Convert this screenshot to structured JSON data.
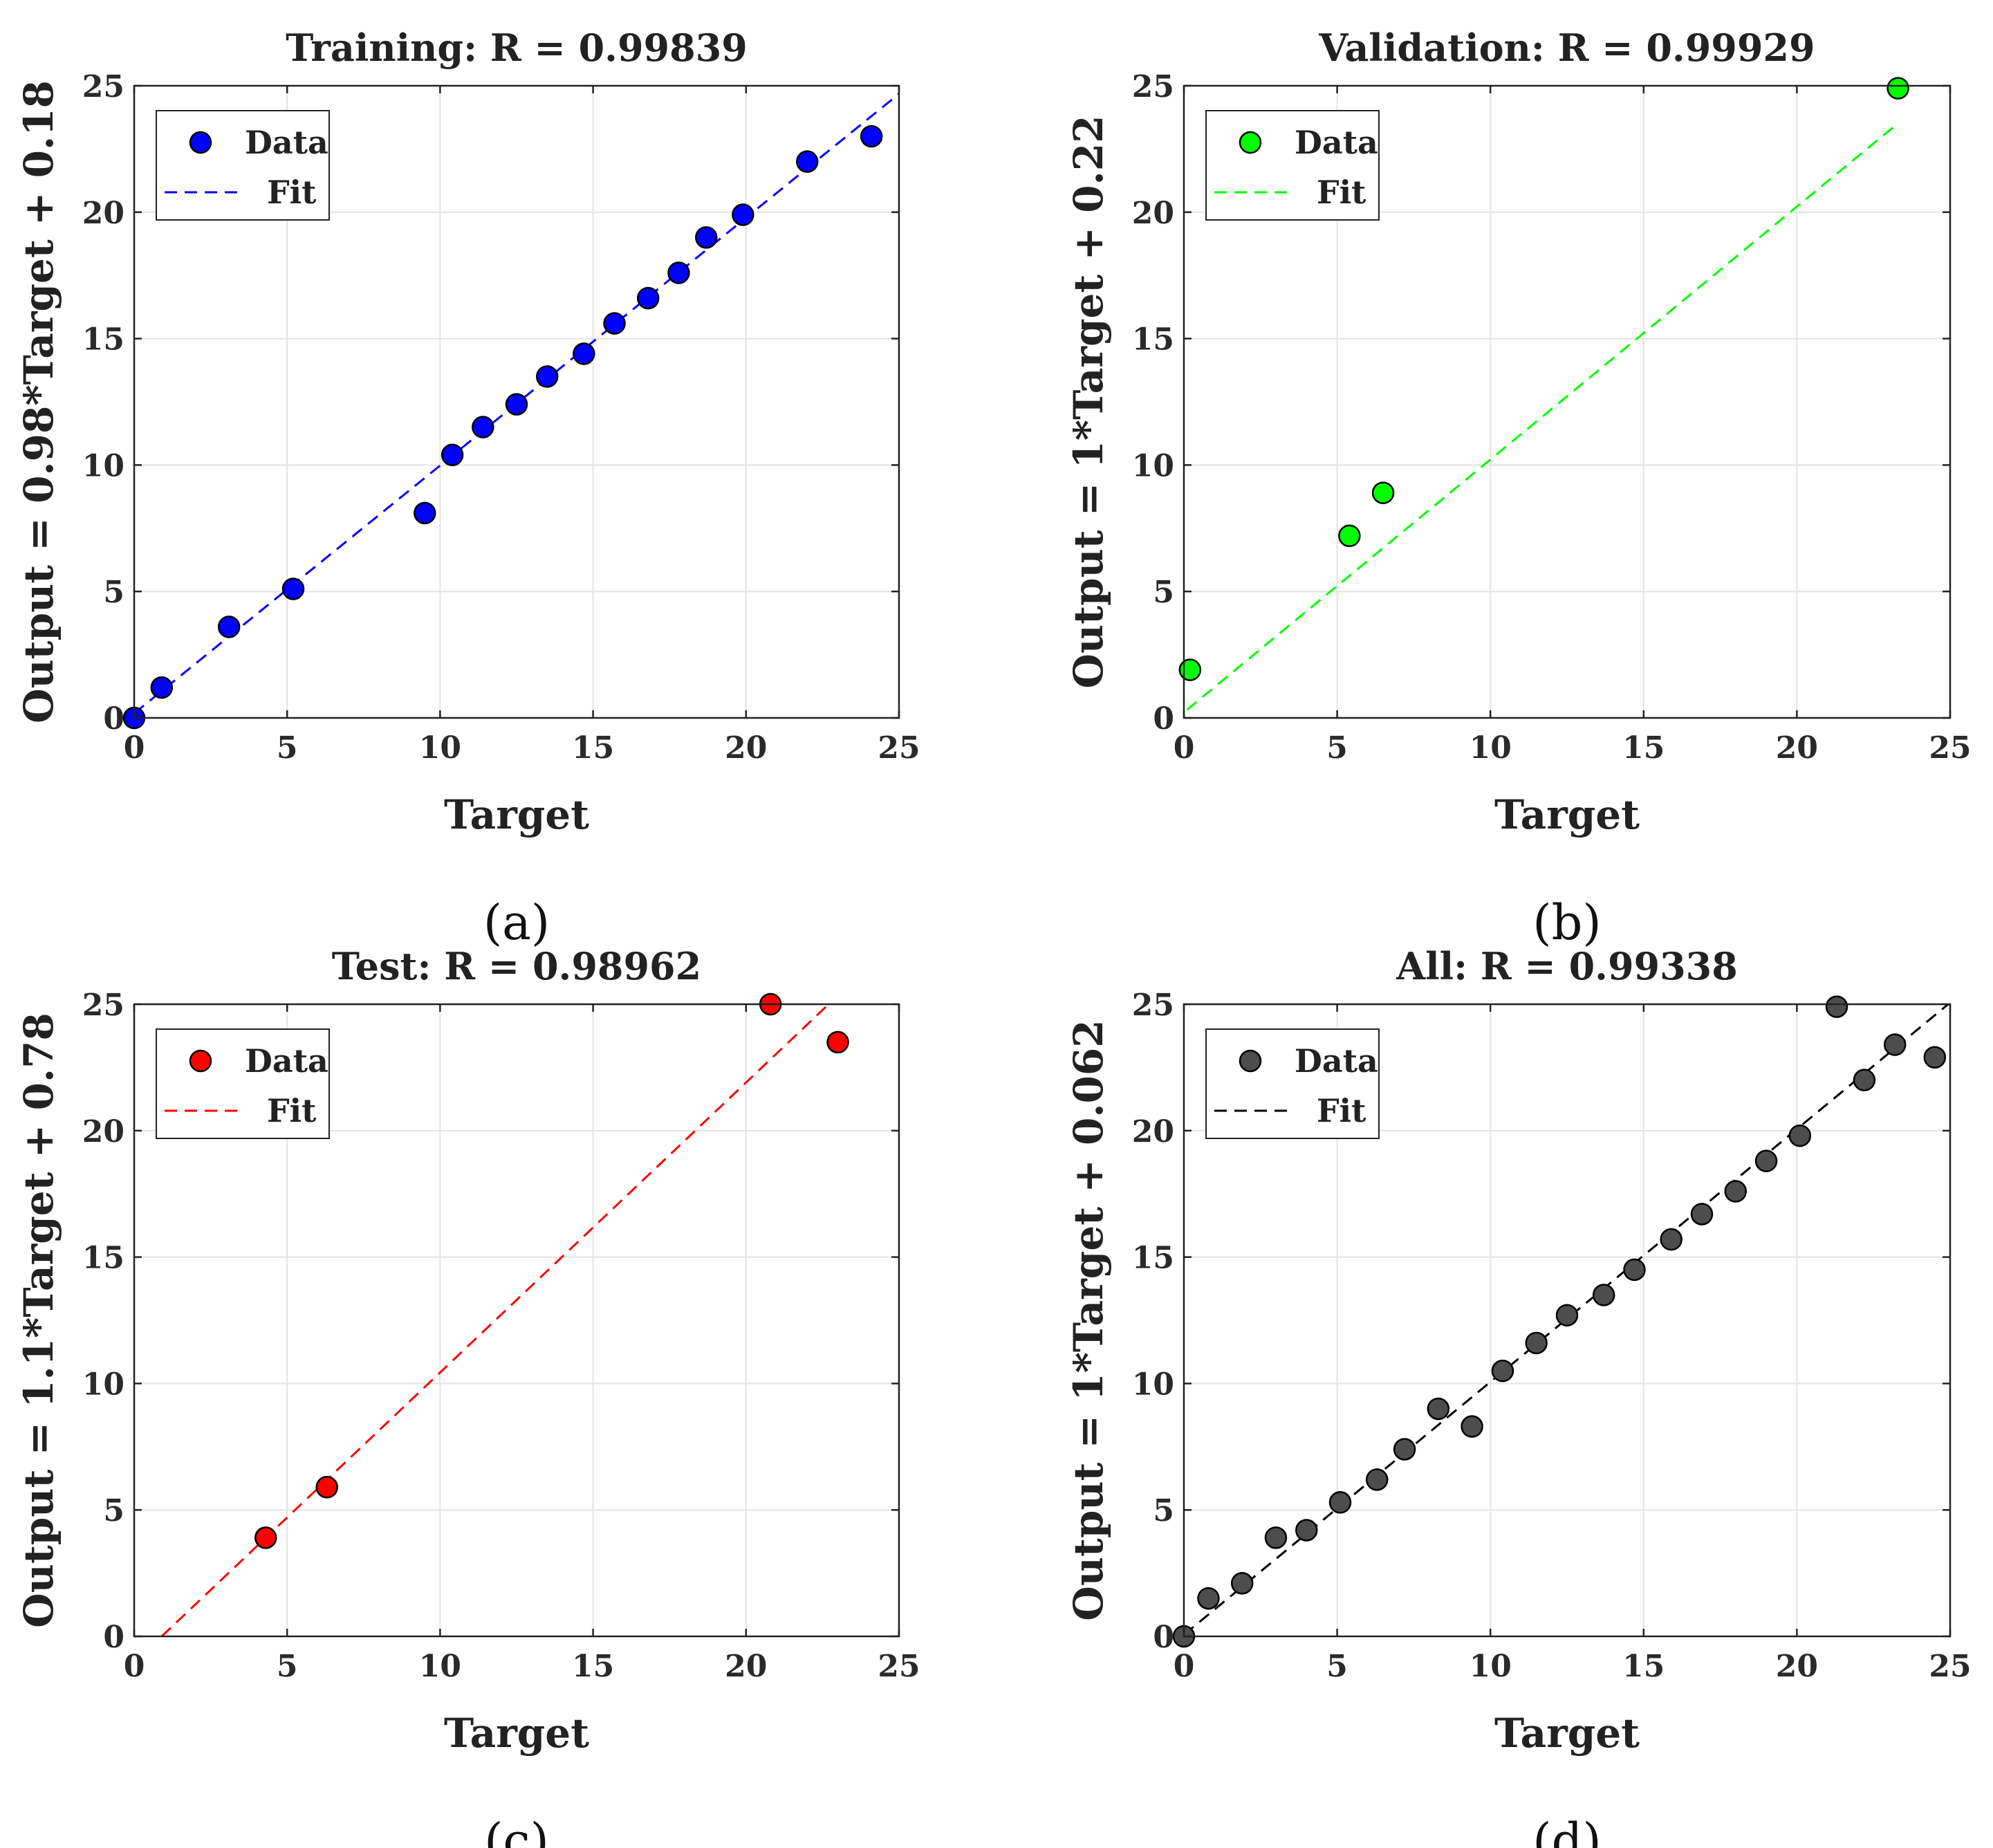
{
  "chart_data": [
    {
      "type": "scatter",
      "panel": "(a)",
      "caption": "(a)",
      "title": "Training: R = 0.99839",
      "xlabel": "Target",
      "ylabel": "Output = 0.98*Target + 0.18",
      "xlim": [
        0,
        25
      ],
      "ylim": [
        0,
        25
      ],
      "xticks": [
        "0",
        "5",
        "10",
        "15",
        "20",
        "25"
      ],
      "yticks": [
        "0",
        "5",
        "10",
        "15",
        "20",
        "25"
      ],
      "grid": true,
      "legend": {
        "position": "top-left",
        "data_label": "Data",
        "fit_label": "Fit"
      },
      "point_color": "#0000ff",
      "fit_color": "#0000ff",
      "fit": {
        "slope": 0.98,
        "intercept": 0.18
      },
      "points": [
        {
          "x": 0,
          "y": 0
        },
        {
          "x": 0.9,
          "y": 1.2
        },
        {
          "x": 3.1,
          "y": 3.6
        },
        {
          "x": 5.2,
          "y": 5.1
        },
        {
          "x": 9.5,
          "y": 8.1
        },
        {
          "x": 10.4,
          "y": 10.4
        },
        {
          "x": 11.4,
          "y": 11.5
        },
        {
          "x": 12.5,
          "y": 12.4
        },
        {
          "x": 13.5,
          "y": 13.5
        },
        {
          "x": 14.7,
          "y": 14.4
        },
        {
          "x": 15.7,
          "y": 15.6
        },
        {
          "x": 16.8,
          "y": 16.6
        },
        {
          "x": 17.8,
          "y": 17.6
        },
        {
          "x": 18.7,
          "y": 19.0
        },
        {
          "x": 19.9,
          "y": 19.9
        },
        {
          "x": 22.0,
          "y": 22.0
        },
        {
          "x": 24.1,
          "y": 23.0
        }
      ]
    },
    {
      "type": "scatter",
      "panel": "(b)",
      "caption": "(b)",
      "title": "Validation: R = 0.99929",
      "xlabel": "Target",
      "ylabel": "Output = 1*Target + 0.22",
      "xlim": [
        0,
        25
      ],
      "ylim": [
        0,
        25
      ],
      "xticks": [
        "0",
        "5",
        "10",
        "15",
        "20",
        "25"
      ],
      "yticks": [
        "0",
        "5",
        "10",
        "15",
        "20",
        "25"
      ],
      "grid": true,
      "legend": {
        "position": "top-left",
        "data_label": "Data",
        "fit_label": "Fit"
      },
      "point_color": "#00ff00",
      "fit_color": "#00ff00",
      "fit": {
        "slope": 1.0,
        "intercept": 0.22
      },
      "fit_range": [
        0.1,
        23.3
      ],
      "points": [
        {
          "x": 0.2,
          "y": 1.9
        },
        {
          "x": 5.4,
          "y": 7.2
        },
        {
          "x": 6.5,
          "y": 8.9
        },
        {
          "x": 23.3,
          "y": 24.9
        }
      ]
    },
    {
      "type": "scatter",
      "panel": "(c)",
      "caption": "(c)",
      "title": "Test: R = 0.98962",
      "xlabel": "Target",
      "ylabel": "Output = 1.1*Target + 0.78",
      "xlim": [
        0,
        25
      ],
      "ylim": [
        0,
        25
      ],
      "xticks": [
        "0",
        "5",
        "10",
        "15",
        "20",
        "25"
      ],
      "yticks": [
        "0",
        "5",
        "10",
        "15",
        "20",
        "25"
      ],
      "grid": true,
      "legend": {
        "position": "top-left",
        "data_label": "Data",
        "fit_label": "Fit"
      },
      "point_color": "#ff0000",
      "fit_color": "#ff0000",
      "fit": {
        "slope": 1.1,
        "intercept": 0.78
      },
      "fit_segment": [
        [
          0.9,
          0
        ],
        [
          22.7,
          25
        ]
      ],
      "points": [
        {
          "x": 4.3,
          "y": 3.9
        },
        {
          "x": 6.3,
          "y": 5.9
        },
        {
          "x": 20.8,
          "y": 25.0
        },
        {
          "x": 23.0,
          "y": 23.5
        }
      ]
    },
    {
      "type": "scatter",
      "panel": "(d)",
      "caption": "(d)",
      "title": "All: R = 0.99338",
      "xlabel": "Target",
      "ylabel": "Output = 1*Target + 0.062",
      "xlim": [
        0,
        25
      ],
      "ylim": [
        0,
        25
      ],
      "xticks": [
        "0",
        "5",
        "10",
        "15",
        "20",
        "25"
      ],
      "yticks": [
        "0",
        "5",
        "10",
        "15",
        "20",
        "25"
      ],
      "grid": true,
      "legend": {
        "position": "top-left",
        "data_label": "Data",
        "fit_label": "Fit"
      },
      "point_color": "#4d4d4d",
      "fit_color": "#000000",
      "fit": {
        "slope": 1.0,
        "intercept": 0.062
      },
      "points": [
        {
          "x": 0,
          "y": 0
        },
        {
          "x": 0.8,
          "y": 1.5
        },
        {
          "x": 1.9,
          "y": 2.1
        },
        {
          "x": 3.0,
          "y": 3.9
        },
        {
          "x": 4.0,
          "y": 4.2
        },
        {
          "x": 5.1,
          "y": 5.3
        },
        {
          "x": 6.3,
          "y": 6.2
        },
        {
          "x": 7.2,
          "y": 7.4
        },
        {
          "x": 8.3,
          "y": 9.0
        },
        {
          "x": 9.4,
          "y": 8.3
        },
        {
          "x": 10.4,
          "y": 10.5
        },
        {
          "x": 11.5,
          "y": 11.6
        },
        {
          "x": 12.5,
          "y": 12.7
        },
        {
          "x": 13.7,
          "y": 13.5
        },
        {
          "x": 14.7,
          "y": 14.5
        },
        {
          "x": 15.9,
          "y": 15.7
        },
        {
          "x": 16.9,
          "y": 16.7
        },
        {
          "x": 18.0,
          "y": 17.6
        },
        {
          "x": 19.0,
          "y": 18.8
        },
        {
          "x": 20.1,
          "y": 19.8
        },
        {
          "x": 21.3,
          "y": 24.9
        },
        {
          "x": 22.2,
          "y": 22.0
        },
        {
          "x": 23.2,
          "y": 23.4
        },
        {
          "x": 24.5,
          "y": 22.9
        }
      ]
    }
  ]
}
